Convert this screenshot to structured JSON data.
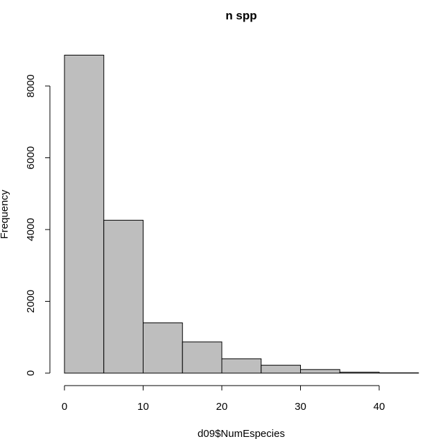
{
  "chart_data": {
    "type": "bar",
    "title": "n spp",
    "xlabel": "d09$NumEspecies",
    "ylabel": "Frequency",
    "bins": [
      {
        "start": 0,
        "end": 5,
        "count": 8860
      },
      {
        "start": 5,
        "end": 10,
        "count": 4260
      },
      {
        "start": 10,
        "end": 15,
        "count": 1400
      },
      {
        "start": 15,
        "end": 20,
        "count": 870
      },
      {
        "start": 20,
        "end": 25,
        "count": 400
      },
      {
        "start": 25,
        "end": 30,
        "count": 220
      },
      {
        "start": 30,
        "end": 35,
        "count": 100
      },
      {
        "start": 35,
        "end": 40,
        "count": 25
      },
      {
        "start": 40,
        "end": 45,
        "count": 8
      }
    ],
    "xlim": [
      0,
      45
    ],
    "ylim": [
      0,
      8860
    ],
    "x_ticks": [
      "0",
      "10",
      "20",
      "30",
      "40"
    ],
    "y_ticks": [
      "0",
      "2000",
      "4000",
      "6000",
      "8000"
    ],
    "bar_color": "#bebebe",
    "grid": false,
    "legend": "none"
  }
}
